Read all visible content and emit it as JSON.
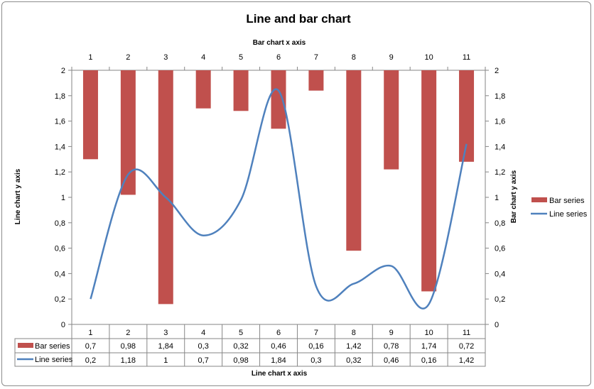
{
  "chart_data": {
    "type": "bar+line",
    "title": "Line and bar chart",
    "x2label": "Bar chart x axis",
    "xlabel": "Line chart x axis",
    "ylabel": "Line chart y axis",
    "y2label": "Bar chart y axis",
    "categories": [
      "1",
      "2",
      "3",
      "4",
      "5",
      "6",
      "7",
      "8",
      "9",
      "10",
      "11"
    ],
    "ylim": [
      0,
      2
    ],
    "yticks": [
      "0",
      "0,2",
      "0,4",
      "0,6",
      "0,8",
      "1",
      "1,2",
      "1,4",
      "1,6",
      "1,8",
      "2"
    ],
    "y2lim": [
      2,
      0
    ],
    "y2_reversed": true,
    "legend_position": "right",
    "data_table": true,
    "series": [
      {
        "name": "Bar series",
        "kind": "bar",
        "axis": "secondary",
        "color": "#c0504d",
        "values": [
          0.7,
          0.98,
          1.84,
          0.3,
          0.32,
          0.46,
          0.16,
          1.42,
          0.78,
          1.74,
          0.72
        ],
        "labels": [
          "0,7",
          "0,98",
          "1,84",
          "0,3",
          "0,32",
          "0,46",
          "0,16",
          "1,42",
          "0,78",
          "1,74",
          "0,72"
        ]
      },
      {
        "name": "Line series",
        "kind": "line",
        "axis": "primary",
        "smooth": true,
        "color": "#4f81bd",
        "values": [
          0.2,
          1.18,
          1,
          0.7,
          0.98,
          1.84,
          0.3,
          0.32,
          0.46,
          0.16,
          1.42
        ],
        "labels": [
          "0,2",
          "1,18",
          "1",
          "0,7",
          "0,98",
          "1,84",
          "0,3",
          "0,32",
          "0,46",
          "0,16",
          "1,42"
        ]
      }
    ]
  }
}
